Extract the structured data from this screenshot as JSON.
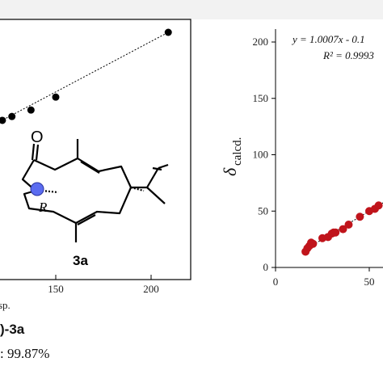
{
  "chart_data": [
    {
      "type": "scatter",
      "x_tick_labels": [
        "150",
        "200"
      ],
      "xlabel_fragment": "sp.",
      "x": [
        112,
        118,
        122,
        127,
        137,
        150,
        209
      ],
      "y": [
        117,
        120,
        122,
        125,
        130,
        140,
        190
      ],
      "compound_label": "3a",
      "stereo_label": "R",
      "trendline": "dotted"
    },
    {
      "type": "scatter",
      "ylabel": "δ",
      "ylabel_sub": "calcd.",
      "yticks": [
        "0",
        "50",
        "100",
        "150",
        "200"
      ],
      "xticks": [
        "0",
        "50"
      ],
      "ylim": [
        0,
        215
      ],
      "xlim": [
        0,
        95
      ],
      "equation": "y = 1.0007x - 0.1",
      "r2": "R² = 0.9993",
      "trendline": "dotted",
      "marker_color": "#c0141b",
      "x": [
        16,
        17,
        18,
        19,
        20,
        25,
        28,
        30,
        31,
        32,
        36,
        39,
        45,
        50,
        53,
        55
      ],
      "y": [
        14,
        17,
        19,
        22,
        21,
        26,
        27,
        30,
        31,
        31,
        34,
        38,
        45,
        50,
        52,
        55
      ]
    }
  ],
  "captions": {
    "line1": ")-3a",
    "line2": ": 99.87%"
  }
}
